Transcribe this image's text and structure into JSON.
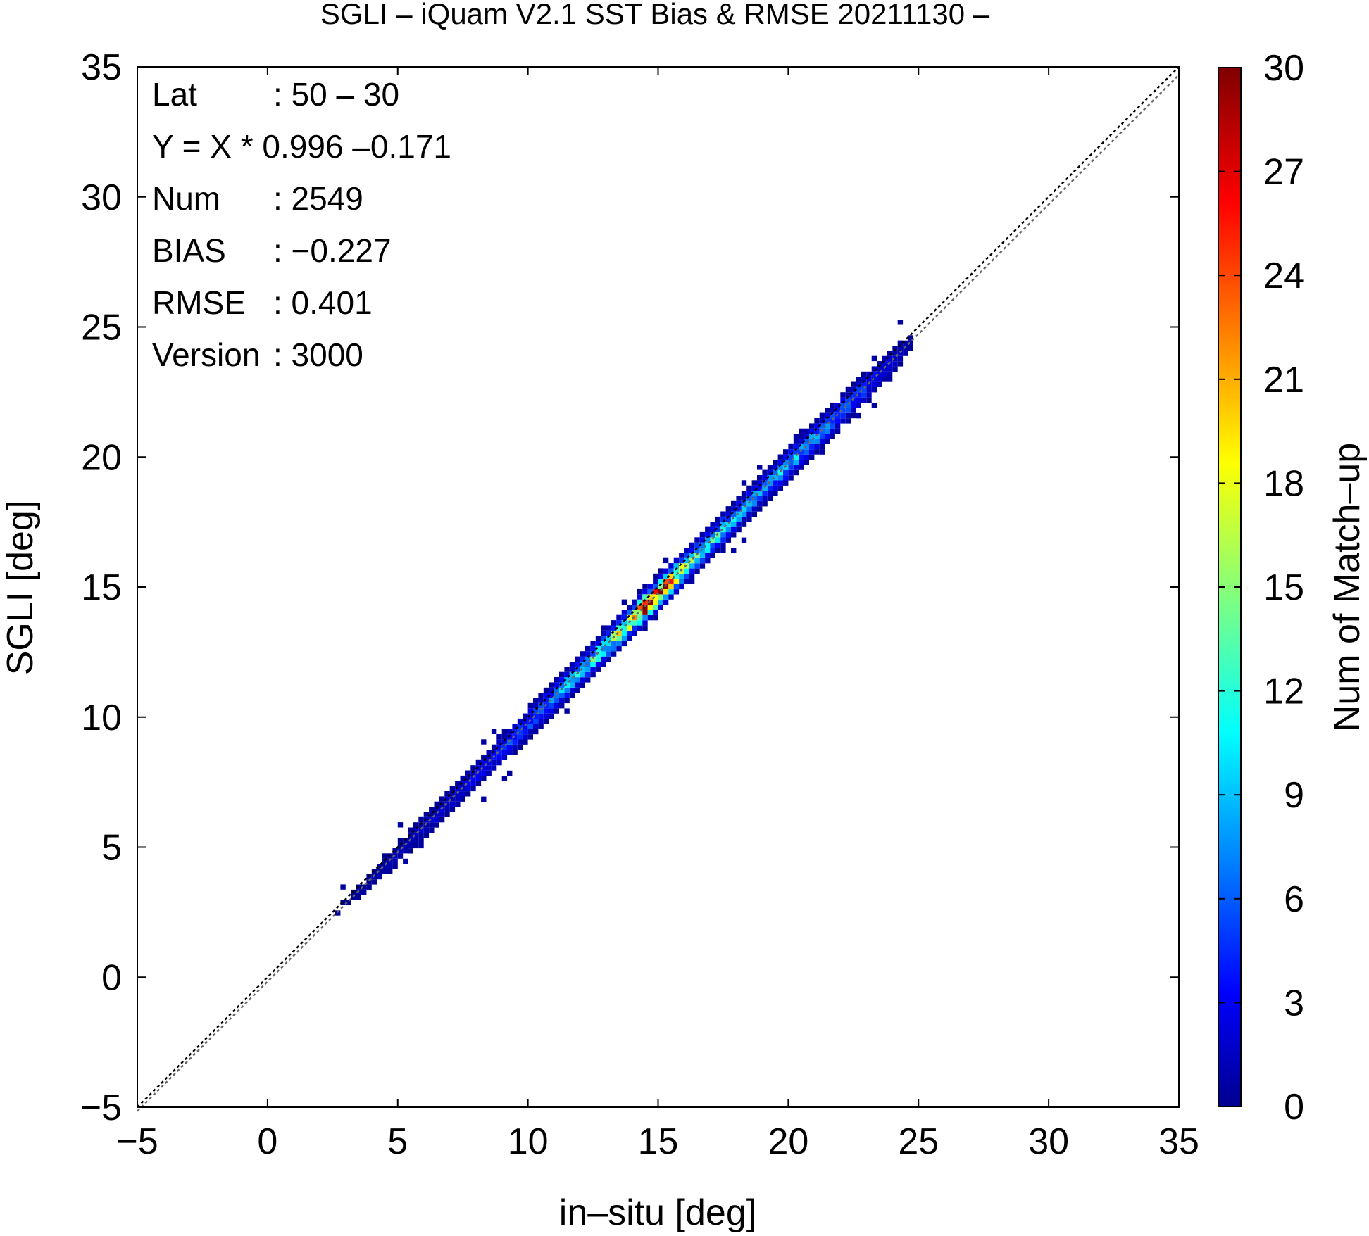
{
  "chart_data": {
    "type": "heatmap",
    "title": "SGLI – iQuam V2.1 SST Bias & RMSE 20211130 –",
    "xlabel": "in–situ [deg]",
    "ylabel": "SGLI [deg]",
    "colorbar_label": "Num of Match–up",
    "xlim": [
      -5,
      35
    ],
    "ylim": [
      -5,
      35
    ],
    "x_ticks": [
      "−5",
      "0",
      "5",
      "10",
      "15",
      "20",
      "25",
      "30",
      "35"
    ],
    "y_ticks": [
      "−5",
      "0",
      "5",
      "10",
      "15",
      "20",
      "25",
      "30",
      "35"
    ],
    "colorbar_range": [
      0,
      30
    ],
    "colorbar_ticks": [
      "0",
      "3",
      "6",
      "9",
      "12",
      "15",
      "18",
      "21",
      "24",
      "27",
      "30"
    ],
    "colormap": "jet",
    "reference_lines": [
      "y = x (dotted black)",
      "fit line (dotted gray)"
    ],
    "fit": {
      "slope": 0.996,
      "intercept": -0.171
    },
    "density_profile": [
      [
        2.0,
        0.3
      ],
      [
        3.0,
        0.6
      ],
      [
        4.0,
        1.0
      ],
      [
        5.0,
        1.5
      ],
      [
        6.0,
        2.0
      ],
      [
        7.0,
        2.4
      ],
      [
        8.0,
        3.0
      ],
      [
        9.0,
        4.5
      ],
      [
        10.0,
        6.5
      ],
      [
        11.0,
        8.0
      ],
      [
        12.0,
        10.0
      ],
      [
        13.0,
        13.0
      ],
      [
        14.0,
        23.0
      ],
      [
        14.5,
        28.0
      ],
      [
        15.0,
        26.0
      ],
      [
        15.5,
        20.0
      ],
      [
        16.0,
        15.0
      ],
      [
        17.0,
        11.0
      ],
      [
        18.0,
        8.0
      ],
      [
        19.0,
        8.0
      ],
      [
        20.0,
        9.0
      ],
      [
        21.0,
        8.0
      ],
      [
        22.0,
        6.5
      ],
      [
        23.0,
        4.5
      ],
      [
        24.0,
        2.0
      ],
      [
        24.6,
        0.8
      ]
    ],
    "stats": [
      {
        "label": "Lat",
        "value": ": 50 – 30"
      },
      {
        "label": "Y = X * 0.996 –0.171",
        "value": ""
      },
      {
        "label": "Num",
        "value": ": 2549"
      },
      {
        "label": "BIAS",
        "value": ": −0.227"
      },
      {
        "label": "RMSE",
        "value": ": 0.401"
      },
      {
        "label": "Version",
        "value": ": 3000"
      }
    ]
  }
}
